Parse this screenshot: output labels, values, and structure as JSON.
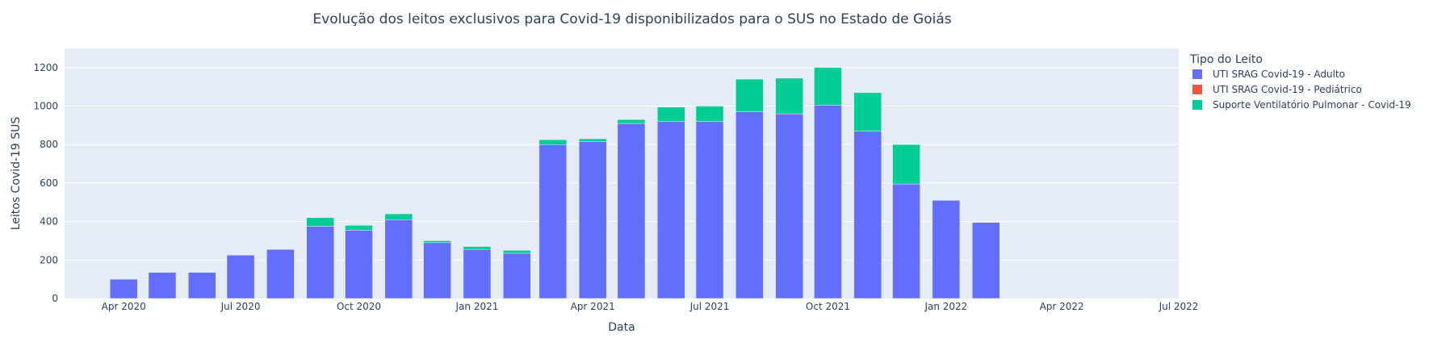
{
  "chart_data": {
    "type": "bar",
    "barmode": "stack",
    "title": "Evolução dos leitos exclusivos para Covid-19 disponibilizados para o SUS no Estado de Goiás",
    "xlabel": "Data",
    "ylabel": "Leitos Covid-19 SUS",
    "ylim": [
      0,
      1300
    ],
    "yticks": [
      "0",
      "200",
      "400",
      "600",
      "800",
      "1000",
      "1200"
    ],
    "xticks": [
      "Apr 2020",
      "Jul 2020",
      "Oct 2020",
      "Jan 2021",
      "Apr 2021",
      "Jul 2021",
      "Oct 2021",
      "Jan 2022",
      "Apr 2022",
      "Jul 2022"
    ],
    "xrange": [
      "2020-02-15",
      "2022-07-01"
    ],
    "grid": true,
    "legend_title": "Tipo do Leito",
    "legend_position": "right",
    "categories": [
      "2020-03-01",
      "2020-04-01",
      "2020-05-01",
      "2020-06-01",
      "2020-07-01",
      "2020-08-01",
      "2020-09-01",
      "2020-10-01",
      "2020-11-01",
      "2020-12-01",
      "2021-01-01",
      "2021-02-01",
      "2021-03-01",
      "2021-04-01",
      "2021-05-01",
      "2021-06-01",
      "2021-07-01",
      "2021-08-01",
      "2021-09-01",
      "2021-10-01",
      "2021-11-01",
      "2021-12-01",
      "2022-01-01",
      "2022-02-01",
      "2022-03-01",
      "2022-04-01",
      "2022-05-01",
      "2022-06-01"
    ],
    "series": [
      {
        "name": "UTI SRAG Covid-19 - Adulto",
        "color": "#636efa",
        "values": [
          0,
          100,
          135,
          135,
          225,
          255,
          375,
          355,
          410,
          290,
          255,
          235,
          800,
          815,
          910,
          920,
          920,
          970,
          960,
          1005,
          870,
          595,
          510,
          395,
          0,
          0,
          0,
          0
        ]
      },
      {
        "name": "UTI SRAG Covid-19 - Pediátrico",
        "color": "#ef553b",
        "values": [
          0,
          0,
          0,
          0,
          0,
          0,
          0,
          0,
          0,
          0,
          0,
          0,
          0,
          0,
          0,
          0,
          0,
          0,
          0,
          0,
          0,
          0,
          0,
          0,
          0,
          0,
          0,
          0
        ]
      },
      {
        "name": "Suporte Ventilatório Pulmonar - Covid-19",
        "color": "#00cc96",
        "values": [
          0,
          0,
          0,
          0,
          0,
          0,
          45,
          25,
          30,
          10,
          15,
          15,
          25,
          15,
          20,
          75,
          80,
          170,
          185,
          195,
          200,
          205,
          0,
          0,
          0,
          0,
          0,
          0
        ]
      }
    ]
  }
}
